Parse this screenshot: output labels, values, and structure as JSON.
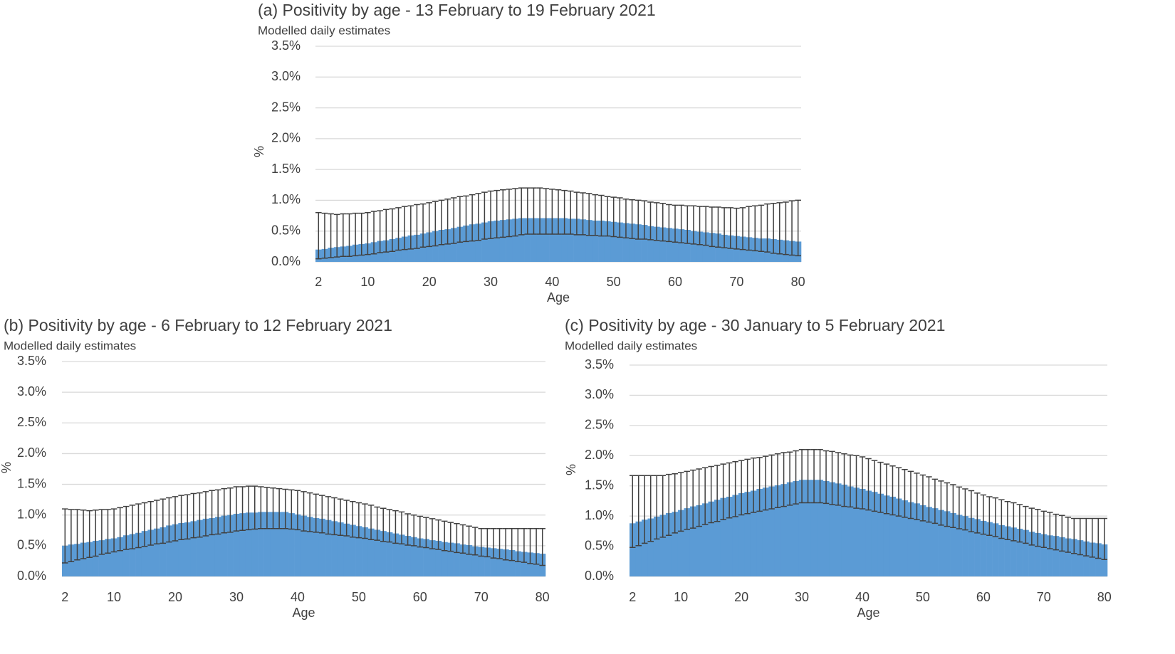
{
  "chart_data": [
    {
      "type": "bar",
      "title": "(a) Positivity by age - 13 February to 19 February 2021",
      "subtitle": "Modelled daily estimates",
      "x_label": "Age",
      "y_label": "%",
      "color": "#5b9bd5",
      "error_color": "#404040",
      "grid": true,
      "xlim": [
        1.5,
        80.5
      ],
      "xticks": [
        2,
        10,
        20,
        30,
        40,
        50,
        60,
        70,
        80
      ],
      "ylim": [
        0,
        3.5
      ],
      "yticks": [
        {
          "value": 0,
          "label": "0.0%"
        },
        {
          "value": 0.5,
          "label": "0.5%"
        },
        {
          "value": 1,
          "label": "1.0%"
        },
        {
          "value": 1.5,
          "label": "1.5%"
        },
        {
          "value": 2,
          "label": "2.0%"
        },
        {
          "value": 2.5,
          "label": "2.5%"
        },
        {
          "value": 3,
          "label": "3.0%"
        },
        {
          "value": 3.5,
          "label": "3.5%"
        }
      ],
      "x": [
        2,
        3,
        4,
        5,
        6,
        7,
        8,
        9,
        10,
        11,
        12,
        13,
        14,
        15,
        16,
        17,
        18,
        19,
        20,
        21,
        22,
        23,
        24,
        25,
        26,
        27,
        28,
        29,
        30,
        31,
        32,
        33,
        34,
        35,
        36,
        37,
        38,
        39,
        40,
        41,
        42,
        43,
        44,
        45,
        46,
        47,
        48,
        49,
        50,
        51,
        52,
        53,
        54,
        55,
        56,
        57,
        58,
        59,
        60,
        61,
        62,
        63,
        64,
        65,
        66,
        67,
        68,
        69,
        70,
        71,
        72,
        73,
        74,
        75,
        76,
        77,
        78,
        79,
        80
      ],
      "values": [
        0.2,
        0.21,
        0.23,
        0.24,
        0.25,
        0.26,
        0.28,
        0.29,
        0.3,
        0.32,
        0.34,
        0.35,
        0.37,
        0.39,
        0.41,
        0.43,
        0.44,
        0.46,
        0.48,
        0.5,
        0.52,
        0.53,
        0.55,
        0.57,
        0.59,
        0.61,
        0.62,
        0.64,
        0.66,
        0.67,
        0.68,
        0.69,
        0.7,
        0.71,
        0.71,
        0.71,
        0.71,
        0.71,
        0.71,
        0.71,
        0.71,
        0.7,
        0.7,
        0.69,
        0.68,
        0.67,
        0.67,
        0.66,
        0.65,
        0.64,
        0.63,
        0.62,
        0.61,
        0.6,
        0.58,
        0.57,
        0.56,
        0.55,
        0.54,
        0.53,
        0.52,
        0.5,
        0.49,
        0.48,
        0.47,
        0.46,
        0.44,
        0.43,
        0.42,
        0.41,
        0.4,
        0.39,
        0.38,
        0.38,
        0.37,
        0.36,
        0.35,
        0.34,
        0.33
      ],
      "lower": [
        0.05,
        0.06,
        0.07,
        0.08,
        0.09,
        0.09,
        0.1,
        0.11,
        0.12,
        0.13,
        0.15,
        0.16,
        0.17,
        0.19,
        0.2,
        0.21,
        0.22,
        0.24,
        0.25,
        0.26,
        0.28,
        0.29,
        0.3,
        0.32,
        0.33,
        0.34,
        0.35,
        0.37,
        0.38,
        0.39,
        0.4,
        0.41,
        0.42,
        0.44,
        0.45,
        0.45,
        0.45,
        0.45,
        0.45,
        0.45,
        0.45,
        0.45,
        0.44,
        0.44,
        0.43,
        0.43,
        0.42,
        0.42,
        0.41,
        0.4,
        0.39,
        0.38,
        0.37,
        0.37,
        0.36,
        0.35,
        0.34,
        0.33,
        0.32,
        0.31,
        0.3,
        0.29,
        0.28,
        0.27,
        0.25,
        0.24,
        0.23,
        0.22,
        0.21,
        0.2,
        0.19,
        0.18,
        0.17,
        0.16,
        0.14,
        0.13,
        0.12,
        0.11,
        0.1
      ],
      "upper": [
        0.8,
        0.79,
        0.78,
        0.77,
        0.78,
        0.78,
        0.79,
        0.79,
        0.8,
        0.82,
        0.83,
        0.85,
        0.86,
        0.88,
        0.9,
        0.91,
        0.93,
        0.94,
        0.96,
        0.98,
        1.0,
        1.02,
        1.04,
        1.06,
        1.07,
        1.09,
        1.11,
        1.13,
        1.15,
        1.16,
        1.17,
        1.18,
        1.19,
        1.2,
        1.2,
        1.2,
        1.2,
        1.19,
        1.18,
        1.17,
        1.16,
        1.15,
        1.13,
        1.12,
        1.11,
        1.09,
        1.08,
        1.06,
        1.05,
        1.04,
        1.02,
        1.01,
        1.0,
        0.99,
        0.97,
        0.96,
        0.95,
        0.93,
        0.92,
        0.92,
        0.91,
        0.91,
        0.9,
        0.9,
        0.89,
        0.89,
        0.88,
        0.88,
        0.87,
        0.88,
        0.9,
        0.91,
        0.92,
        0.94,
        0.95,
        0.96,
        0.97,
        0.99,
        1.0
      ]
    },
    {
      "type": "bar",
      "title": "(b) Positivity by age - 6 February to 12 February 2021",
      "subtitle": "Modelled daily estimates",
      "x_label": "Age",
      "y_label": "%",
      "color": "#5b9bd5",
      "error_color": "#404040",
      "grid": true,
      "xlim": [
        1.5,
        80.5
      ],
      "xticks": [
        2,
        10,
        20,
        30,
        40,
        50,
        60,
        70,
        80
      ],
      "ylim": [
        0,
        3.5
      ],
      "yticks": [
        {
          "value": 0,
          "label": "0.0%"
        },
        {
          "value": 0.5,
          "label": "0.5%"
        },
        {
          "value": 1,
          "label": "1.0%"
        },
        {
          "value": 1.5,
          "label": "1.5%"
        },
        {
          "value": 2,
          "label": "2.0%"
        },
        {
          "value": 2.5,
          "label": "2.5%"
        },
        {
          "value": 3,
          "label": "3.0%"
        },
        {
          "value": 3.5,
          "label": "3.5%"
        }
      ],
      "x": [
        2,
        3,
        4,
        5,
        6,
        7,
        8,
        9,
        10,
        11,
        12,
        13,
        14,
        15,
        16,
        17,
        18,
        19,
        20,
        21,
        22,
        23,
        24,
        25,
        26,
        27,
        28,
        29,
        30,
        31,
        32,
        33,
        34,
        35,
        36,
        37,
        38,
        39,
        40,
        41,
        42,
        43,
        44,
        45,
        46,
        47,
        48,
        49,
        50,
        51,
        52,
        53,
        54,
        55,
        56,
        57,
        58,
        59,
        60,
        61,
        62,
        63,
        64,
        65,
        66,
        67,
        68,
        69,
        70,
        71,
        72,
        73,
        74,
        75,
        76,
        77,
        78,
        79,
        80
      ],
      "values": [
        0.5,
        0.52,
        0.53,
        0.55,
        0.56,
        0.58,
        0.59,
        0.61,
        0.62,
        0.64,
        0.67,
        0.69,
        0.71,
        0.74,
        0.76,
        0.78,
        0.8,
        0.83,
        0.85,
        0.87,
        0.88,
        0.9,
        0.92,
        0.94,
        0.95,
        0.97,
        0.99,
        1.0,
        1.02,
        1.03,
        1.04,
        1.04,
        1.05,
        1.05,
        1.05,
        1.05,
        1.05,
        1.03,
        1.01,
        0.99,
        0.97,
        0.95,
        0.94,
        0.92,
        0.9,
        0.88,
        0.86,
        0.84,
        0.82,
        0.8,
        0.78,
        0.76,
        0.74,
        0.72,
        0.7,
        0.68,
        0.66,
        0.64,
        0.62,
        0.61,
        0.59,
        0.58,
        0.56,
        0.55,
        0.54,
        0.52,
        0.51,
        0.49,
        0.48,
        0.47,
        0.46,
        0.45,
        0.44,
        0.43,
        0.41,
        0.4,
        0.39,
        0.38,
        0.37
      ],
      "lower": [
        0.22,
        0.24,
        0.27,
        0.29,
        0.31,
        0.33,
        0.36,
        0.38,
        0.4,
        0.42,
        0.44,
        0.45,
        0.47,
        0.49,
        0.51,
        0.53,
        0.54,
        0.56,
        0.58,
        0.6,
        0.61,
        0.63,
        0.64,
        0.66,
        0.68,
        0.69,
        0.71,
        0.72,
        0.74,
        0.75,
        0.76,
        0.77,
        0.78,
        0.78,
        0.78,
        0.78,
        0.78,
        0.77,
        0.76,
        0.74,
        0.73,
        0.72,
        0.71,
        0.69,
        0.68,
        0.67,
        0.66,
        0.64,
        0.63,
        0.62,
        0.6,
        0.59,
        0.57,
        0.56,
        0.54,
        0.53,
        0.51,
        0.5,
        0.48,
        0.47,
        0.45,
        0.44,
        0.42,
        0.41,
        0.39,
        0.38,
        0.36,
        0.35,
        0.33,
        0.32,
        0.3,
        0.29,
        0.27,
        0.26,
        0.24,
        0.23,
        0.21,
        0.2,
        0.18
      ],
      "upper": [
        1.1,
        1.09,
        1.09,
        1.08,
        1.07,
        1.08,
        1.09,
        1.09,
        1.1,
        1.12,
        1.14,
        1.16,
        1.18,
        1.2,
        1.22,
        1.24,
        1.26,
        1.28,
        1.3,
        1.32,
        1.33,
        1.35,
        1.36,
        1.38,
        1.4,
        1.41,
        1.43,
        1.44,
        1.46,
        1.46,
        1.47,
        1.47,
        1.46,
        1.45,
        1.44,
        1.43,
        1.42,
        1.41,
        1.4,
        1.38,
        1.36,
        1.34,
        1.32,
        1.3,
        1.28,
        1.26,
        1.24,
        1.22,
        1.2,
        1.18,
        1.16,
        1.13,
        1.11,
        1.09,
        1.07,
        1.05,
        1.02,
        1.0,
        0.98,
        0.96,
        0.94,
        0.92,
        0.9,
        0.88,
        0.86,
        0.84,
        0.82,
        0.8,
        0.78,
        0.78,
        0.78,
        0.78,
        0.78,
        0.78,
        0.78,
        0.78,
        0.78,
        0.78,
        0.78
      ]
    },
    {
      "type": "bar",
      "title": "(c) Positivity by age - 30 January to 5 February 2021",
      "subtitle": "Modelled daily estimates",
      "x_label": "Age",
      "y_label": "%",
      "color": "#5b9bd5",
      "error_color": "#404040",
      "grid": true,
      "xlim": [
        1.5,
        80.5
      ],
      "xticks": [
        2,
        10,
        20,
        30,
        40,
        50,
        60,
        70,
        80
      ],
      "ylim": [
        0,
        3.5
      ],
      "yticks": [
        {
          "value": 0,
          "label": "0.0%"
        },
        {
          "value": 0.5,
          "label": "0.5%"
        },
        {
          "value": 1,
          "label": "1.0%"
        },
        {
          "value": 1.5,
          "label": "1.5%"
        },
        {
          "value": 2,
          "label": "2.0%"
        },
        {
          "value": 2.5,
          "label": "2.5%"
        },
        {
          "value": 3,
          "label": "3.0%"
        },
        {
          "value": 3.5,
          "label": "3.5%"
        }
      ],
      "x": [
        2,
        3,
        4,
        5,
        6,
        7,
        8,
        9,
        10,
        11,
        12,
        13,
        14,
        15,
        16,
        17,
        18,
        19,
        20,
        21,
        22,
        23,
        24,
        25,
        26,
        27,
        28,
        29,
        30,
        31,
        32,
        33,
        34,
        35,
        36,
        37,
        38,
        39,
        40,
        41,
        42,
        43,
        44,
        45,
        46,
        47,
        48,
        49,
        50,
        51,
        52,
        53,
        54,
        55,
        56,
        57,
        58,
        59,
        60,
        61,
        62,
        63,
        64,
        65,
        66,
        67,
        68,
        69,
        70,
        71,
        72,
        73,
        74,
        75,
        76,
        77,
        78,
        79,
        80
      ],
      "values": [
        0.88,
        0.91,
        0.94,
        0.96,
        0.99,
        1.02,
        1.05,
        1.07,
        1.1,
        1.13,
        1.16,
        1.18,
        1.21,
        1.24,
        1.27,
        1.3,
        1.32,
        1.35,
        1.38,
        1.4,
        1.42,
        1.45,
        1.47,
        1.49,
        1.51,
        1.53,
        1.56,
        1.58,
        1.6,
        1.6,
        1.6,
        1.6,
        1.58,
        1.56,
        1.54,
        1.52,
        1.49,
        1.47,
        1.45,
        1.42,
        1.4,
        1.37,
        1.34,
        1.32,
        1.29,
        1.26,
        1.23,
        1.21,
        1.18,
        1.15,
        1.13,
        1.1,
        1.08,
        1.05,
        1.02,
        1.0,
        0.97,
        0.95,
        0.92,
        0.9,
        0.88,
        0.85,
        0.83,
        0.81,
        0.79,
        0.77,
        0.74,
        0.72,
        0.7,
        0.68,
        0.67,
        0.65,
        0.63,
        0.62,
        0.6,
        0.58,
        0.56,
        0.55,
        0.53
      ],
      "lower": [
        0.48,
        0.51,
        0.55,
        0.58,
        0.62,
        0.65,
        0.68,
        0.72,
        0.75,
        0.78,
        0.8,
        0.83,
        0.86,
        0.89,
        0.91,
        0.94,
        0.97,
        0.99,
        1.02,
        1.04,
        1.06,
        1.08,
        1.1,
        1.12,
        1.14,
        1.16,
        1.18,
        1.2,
        1.22,
        1.22,
        1.22,
        1.22,
        1.21,
        1.19,
        1.18,
        1.16,
        1.15,
        1.13,
        1.12,
        1.1,
        1.08,
        1.06,
        1.04,
        1.02,
        1.0,
        0.98,
        0.96,
        0.94,
        0.92,
        0.9,
        0.88,
        0.85,
        0.83,
        0.81,
        0.79,
        0.77,
        0.74,
        0.72,
        0.7,
        0.68,
        0.66,
        0.63,
        0.61,
        0.59,
        0.57,
        0.55,
        0.52,
        0.5,
        0.48,
        0.46,
        0.44,
        0.42,
        0.4,
        0.38,
        0.36,
        0.34,
        0.32,
        0.3,
        0.28
      ],
      "upper": [
        1.67,
        1.67,
        1.67,
        1.67,
        1.67,
        1.67,
        1.69,
        1.7,
        1.72,
        1.74,
        1.76,
        1.78,
        1.8,
        1.82,
        1.84,
        1.86,
        1.88,
        1.9,
        1.92,
        1.94,
        1.96,
        1.97,
        1.99,
        2.01,
        2.03,
        2.05,
        2.06,
        2.08,
        2.1,
        2.1,
        2.1,
        2.1,
        2.08,
        2.07,
        2.05,
        2.03,
        2.01,
        2.0,
        1.98,
        1.95,
        1.92,
        1.89,
        1.86,
        1.83,
        1.8,
        1.77,
        1.74,
        1.71,
        1.68,
        1.65,
        1.61,
        1.58,
        1.55,
        1.52,
        1.48,
        1.45,
        1.42,
        1.38,
        1.35,
        1.32,
        1.3,
        1.27,
        1.24,
        1.22,
        1.19,
        1.16,
        1.13,
        1.11,
        1.08,
        1.06,
        1.03,
        1.01,
        0.98,
        0.96,
        0.96,
        0.96,
        0.96,
        0.96,
        0.96
      ]
    }
  ]
}
